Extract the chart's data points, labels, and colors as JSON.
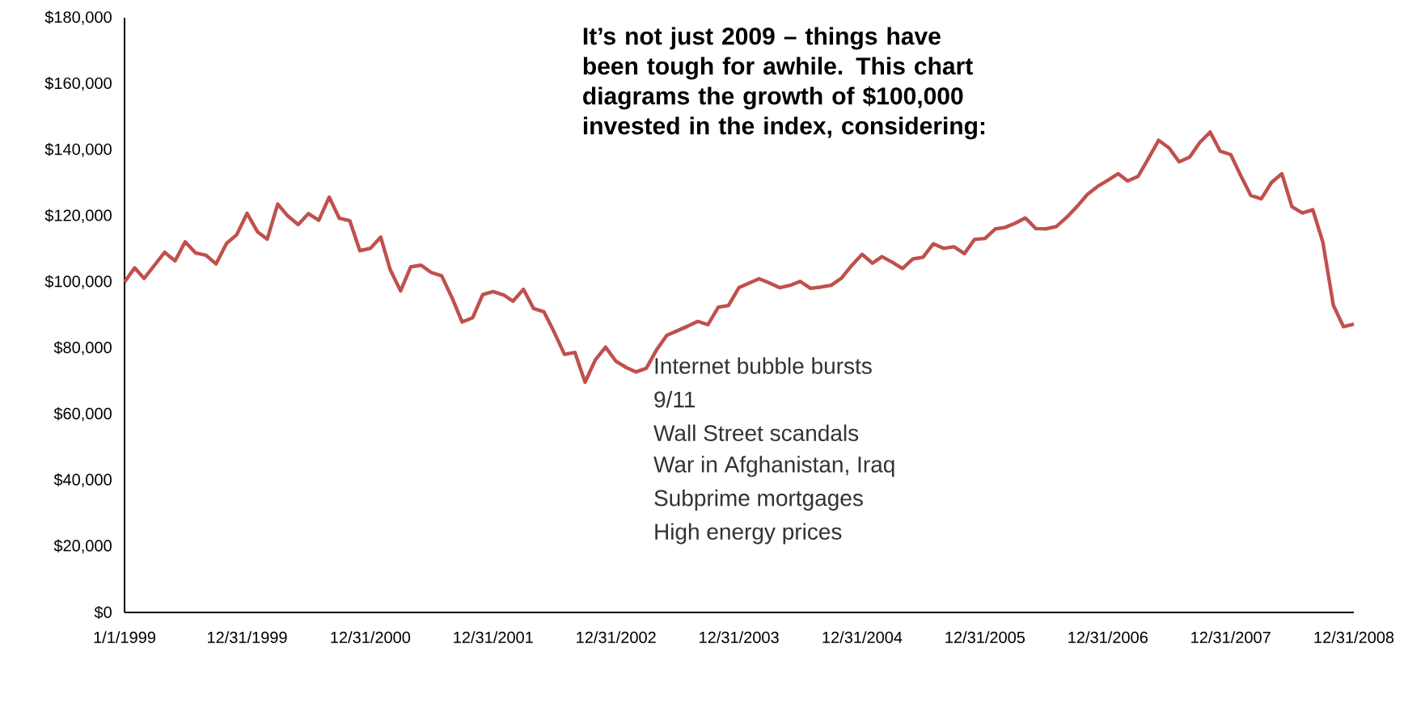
{
  "chart_data": {
    "type": "line",
    "title": "It’s not just 2009 – things have been tough for awhile. This chart diagrams the growth of $100,000 invested in the index, considering:",
    "annotations": [
      "Internet bubble bursts",
      "9/11",
      "Wall Street scandals",
      "War in Afghanistan, Iraq",
      "Subprime mortgages",
      "High energy prices"
    ],
    "x": [
      "1999-01-01",
      "1999-01-31",
      "1999-02-28",
      "1999-03-31",
      "1999-04-30",
      "1999-05-31",
      "1999-06-30",
      "1999-07-31",
      "1999-08-31",
      "1999-09-30",
      "1999-10-31",
      "1999-11-30",
      "1999-12-31",
      "2000-01-31",
      "2000-02-29",
      "2000-03-31",
      "2000-04-30",
      "2000-05-31",
      "2000-06-30",
      "2000-07-31",
      "2000-08-31",
      "2000-09-30",
      "2000-10-31",
      "2000-11-30",
      "2000-12-31",
      "2001-01-31",
      "2001-02-28",
      "2001-03-31",
      "2001-04-30",
      "2001-05-31",
      "2001-06-30",
      "2001-07-31",
      "2001-08-31",
      "2001-09-30",
      "2001-10-31",
      "2001-11-30",
      "2001-12-31",
      "2002-01-31",
      "2002-02-28",
      "2002-03-31",
      "2002-04-30",
      "2002-05-31",
      "2002-06-30",
      "2002-07-31",
      "2002-08-31",
      "2002-09-30",
      "2002-10-31",
      "2002-11-30",
      "2002-12-31",
      "2003-01-31",
      "2003-02-28",
      "2003-03-31",
      "2003-04-30",
      "2003-05-31",
      "2003-06-30",
      "2003-07-31",
      "2003-08-31",
      "2003-09-30",
      "2003-10-31",
      "2003-11-30",
      "2003-12-31",
      "2004-01-31",
      "2004-02-29",
      "2004-03-31",
      "2004-04-30",
      "2004-05-31",
      "2004-06-30",
      "2004-07-31",
      "2004-08-31",
      "2004-09-30",
      "2004-10-31",
      "2004-11-30",
      "2004-12-31",
      "2005-01-31",
      "2005-02-28",
      "2005-03-31",
      "2005-04-30",
      "2005-05-31",
      "2005-06-30",
      "2005-07-31",
      "2005-08-31",
      "2005-09-30",
      "2005-10-31",
      "2005-11-30",
      "2005-12-31",
      "2006-01-31",
      "2006-02-28",
      "2006-03-31",
      "2006-04-30",
      "2006-05-31",
      "2006-06-30",
      "2006-07-31",
      "2006-08-31",
      "2006-09-30",
      "2006-10-31",
      "2006-11-30",
      "2006-12-31",
      "2007-01-31",
      "2007-02-28",
      "2007-03-31",
      "2007-04-30",
      "2007-05-31",
      "2007-06-30",
      "2007-07-31",
      "2007-08-31",
      "2007-09-30",
      "2007-10-31",
      "2007-11-30",
      "2007-12-31",
      "2008-01-31",
      "2008-02-29",
      "2008-03-31",
      "2008-04-30",
      "2008-05-31",
      "2008-06-30",
      "2008-07-31",
      "2008-08-31",
      "2008-09-30",
      "2008-10-31",
      "2008-11-30",
      "2008-12-31"
    ],
    "series": [
      {
        "color": "#c0504d",
        "values": [
          100000,
          104300,
          101100,
          105100,
          109000,
          106400,
          112200,
          108800,
          108100,
          105500,
          111700,
          114300,
          120800,
          115200,
          113000,
          123600,
          120000,
          117400,
          120700,
          118700,
          125700,
          119300,
          118600,
          109500,
          110200,
          113600,
          103800,
          97300,
          104600,
          105100,
          102900,
          101900,
          95200,
          87900,
          89200,
          96200,
          97100,
          96100,
          94200,
          97800,
          92000,
          91000,
          84900,
          78100,
          78700,
          69700,
          76500,
          80300,
          76000,
          74100,
          72800,
          73900,
          79400,
          83900,
          85200,
          86600,
          88100,
          87100,
          92400,
          92900,
          98300,
          99700,
          101000,
          99700,
          98300,
          99000,
          100200,
          98100,
          98500,
          99000,
          101200,
          105000,
          108400,
          105700,
          107700,
          106000,
          104100,
          107000,
          107500,
          111600,
          110200,
          110700,
          108600,
          112900,
          113200,
          116100,
          116500,
          117800,
          119400,
          116200,
          116100,
          116800,
          119600,
          122800,
          126500,
          128900,
          130800,
          132800,
          130600,
          132000,
          137300,
          142900,
          140700,
          136400,
          137800,
          142200,
          145400,
          139600,
          138600,
          132000,
          126200,
          125200,
          130100,
          132800,
          122800,
          120900,
          121900,
          112000,
          93000,
          86500,
          87300
        ]
      }
    ],
    "xlim": [
      "1999-01-01",
      "2008-12-31"
    ],
    "xticks": [
      {
        "value": "1999-01-01",
        "label": "1/1/1999"
      },
      {
        "value": "1999-12-31",
        "label": "12/31/1999"
      },
      {
        "value": "2000-12-31",
        "label": "12/31/2000"
      },
      {
        "value": "2001-12-31",
        "label": "12/31/2001"
      },
      {
        "value": "2002-12-31",
        "label": "12/31/2002"
      },
      {
        "value": "2003-12-31",
        "label": "12/31/2003"
      },
      {
        "value": "2004-12-31",
        "label": "12/31/2004"
      },
      {
        "value": "2005-12-31",
        "label": "12/31/2005"
      },
      {
        "value": "2006-12-31",
        "label": "12/31/2006"
      },
      {
        "value": "2007-12-31",
        "label": "12/31/2007"
      },
      {
        "value": "2008-12-31",
        "label": "12/31/2008"
      }
    ],
    "ylim": [
      0,
      180000
    ],
    "yticks": [
      {
        "value": 0,
        "label": "$0"
      },
      {
        "value": 20000,
        "label": "$20,000"
      },
      {
        "value": 40000,
        "label": "$40,000"
      },
      {
        "value": 60000,
        "label": "$60,000"
      },
      {
        "value": 80000,
        "label": "$80,000"
      },
      {
        "value": 100000,
        "label": "$100,000"
      },
      {
        "value": 120000,
        "label": "$120,000"
      },
      {
        "value": 140000,
        "label": "$140,000"
      },
      {
        "value": 160000,
        "label": "$160,000"
      },
      {
        "value": 180000,
        "label": "$180,000"
      }
    ],
    "grid": false,
    "legend": false,
    "marker": "none",
    "line_style": "solid"
  }
}
